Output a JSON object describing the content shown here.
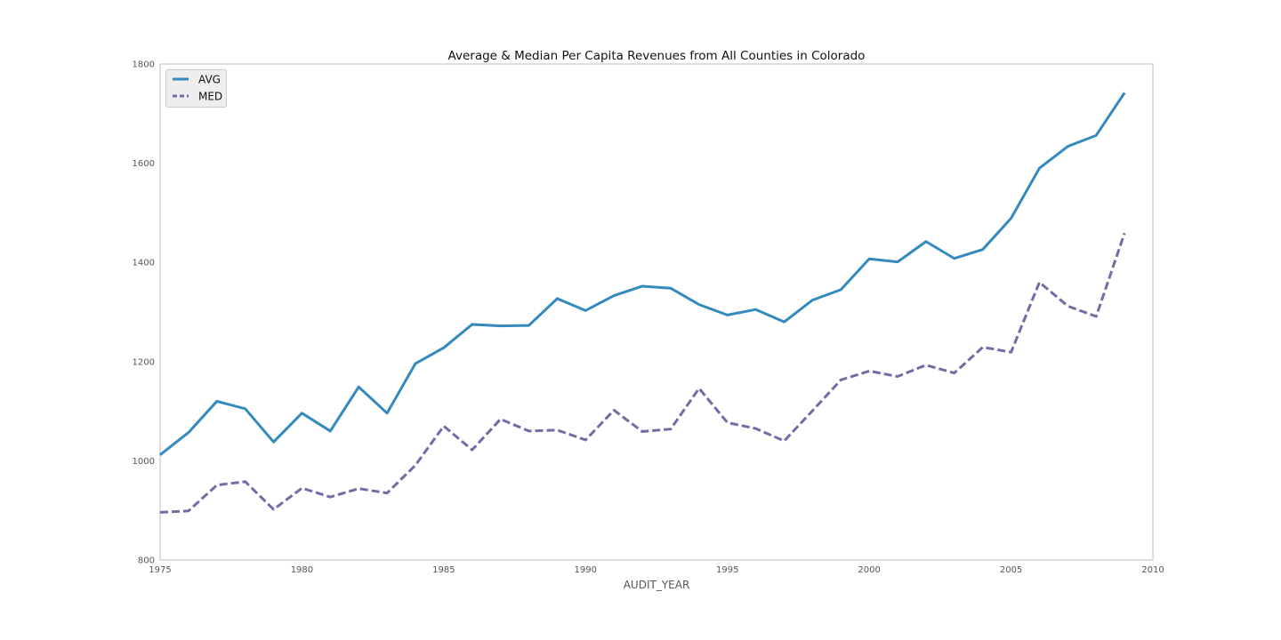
{
  "chart_data": {
    "type": "line",
    "title": "Average & Median Per Capita Revenues from All Counties in Colorado",
    "xlabel": "AUDIT_YEAR",
    "ylabel": "",
    "xlim": [
      1975,
      2010
    ],
    "ylim": [
      800,
      1800
    ],
    "xticks": [
      1975,
      1980,
      1985,
      1990,
      1995,
      2000,
      2005,
      2010
    ],
    "yticks": [
      800,
      1000,
      1200,
      1400,
      1600,
      1800
    ],
    "xtick_labels": [
      "1975",
      "1980",
      "1985",
      "1990",
      "1995",
      "2000",
      "2005",
      "2010"
    ],
    "ytick_labels": [
      "800",
      "1000",
      "1200",
      "1400",
      "1600",
      "1800"
    ],
    "grid": false,
    "legend_position": "top-left",
    "x": [
      1975,
      1976,
      1977,
      1978,
      1979,
      1980,
      1981,
      1982,
      1983,
      1984,
      1985,
      1986,
      1987,
      1988,
      1989,
      1990,
      1991,
      1992,
      1993,
      1994,
      1995,
      1996,
      1997,
      1998,
      1999,
      2000,
      2001,
      2002,
      2003,
      2004,
      2005,
      2006,
      2007,
      2008,
      2009
    ],
    "series": [
      {
        "name": "AVG",
        "color": "#348abd",
        "style": "solid",
        "values": [
          1012,
          1057,
          1120,
          1105,
          1038,
          1096,
          1060,
          1149,
          1096,
          1196,
          1228,
          1275,
          1272,
          1273,
          1327,
          1303,
          1333,
          1352,
          1348,
          1315,
          1294,
          1305,
          1280,
          1324,
          1345,
          1407,
          1401,
          1442,
          1408,
          1426,
          1489,
          1590,
          1634,
          1656,
          1742
        ]
      },
      {
        "name": "MED",
        "color": "#7a68a6",
        "style": "dashed",
        "values": [
          896,
          899,
          951,
          958,
          902,
          945,
          927,
          944,
          935,
          991,
          1070,
          1022,
          1084,
          1060,
          1062,
          1042,
          1102,
          1059,
          1064,
          1146,
          1077,
          1065,
          1040,
          1101,
          1163,
          1181,
          1170,
          1193,
          1177,
          1229,
          1219,
          1360,
          1312,
          1291,
          1459
        ]
      }
    ]
  }
}
